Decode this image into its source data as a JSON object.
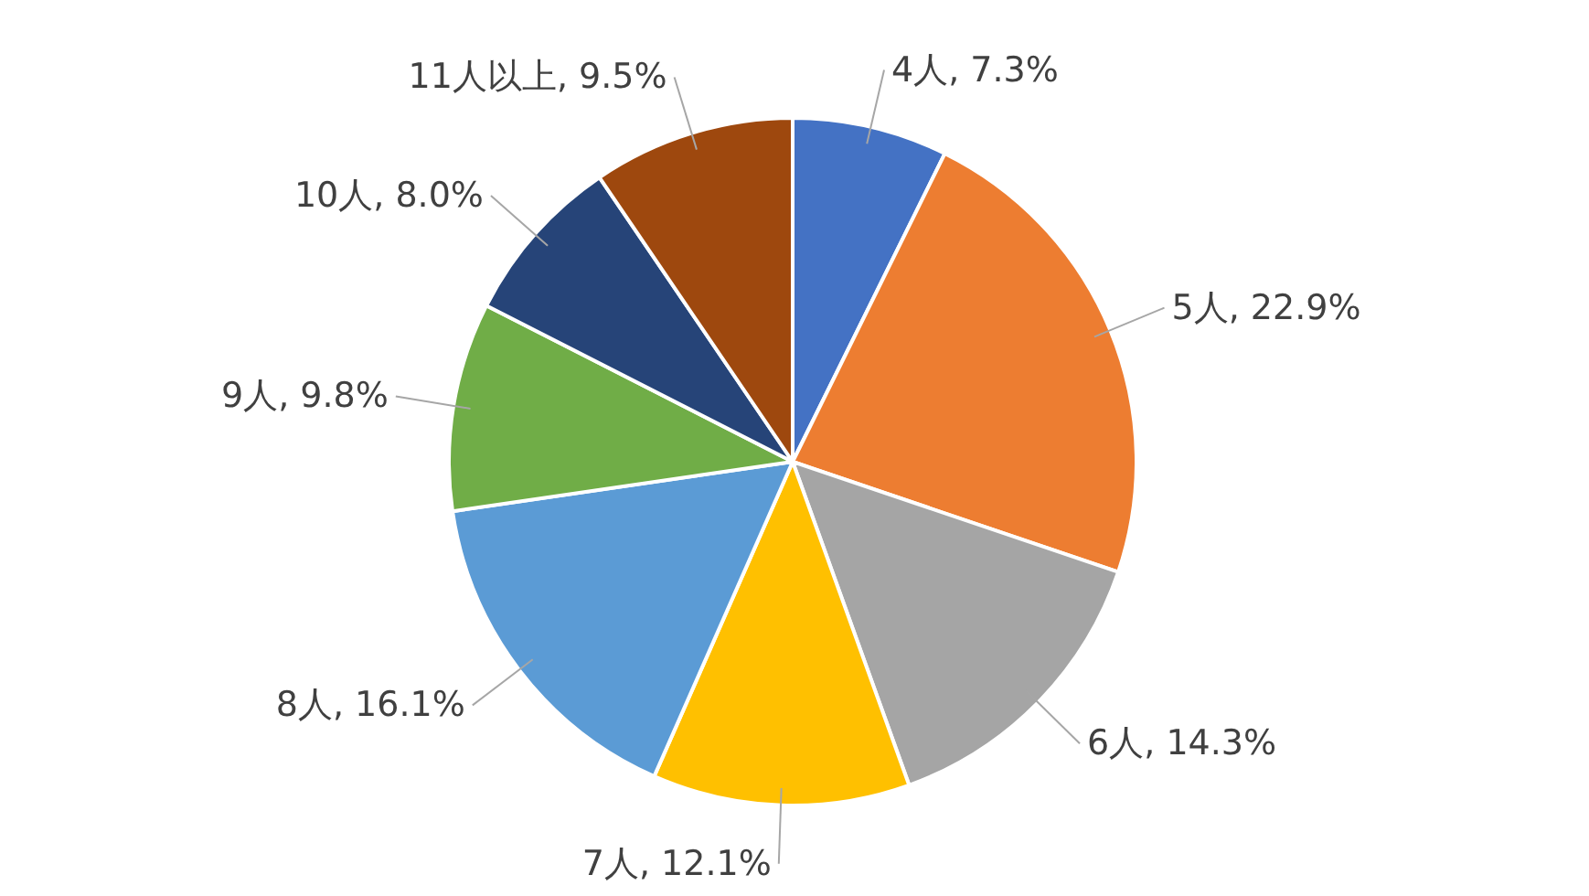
{
  "chart_data": {
    "type": "pie",
    "categories": [
      "4人",
      "5人",
      "6人",
      "7人",
      "8人",
      "9人",
      "10人",
      "11人以上"
    ],
    "values": [
      7.3,
      22.9,
      14.3,
      12.1,
      16.1,
      9.8,
      8.0,
      9.5
    ],
    "value_labels": [
      "7.3%",
      "22.9%",
      "14.3%",
      "12.1%",
      "16.1%",
      "9.8%",
      "8.0%",
      "9.5%"
    ],
    "colors": [
      "#4472c4",
      "#ed7d31",
      "#a5a5a5",
      "#ffc000",
      "#5b9bd5",
      "#70ad47",
      "#264478",
      "#9e480e"
    ]
  }
}
